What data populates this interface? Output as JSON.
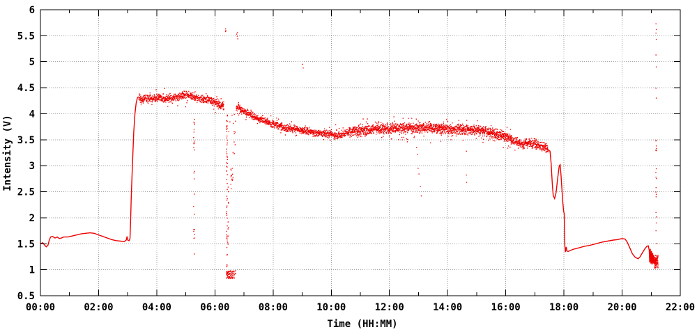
{
  "chart_data": {
    "type": "scatter",
    "title": "",
    "xlabel": "Time (HH:MM)",
    "ylabel": "Intensity (V)",
    "grid": true,
    "legend": "none",
    "series_color": "#ee0000",
    "grid_color": "#a0a0a0",
    "axis_color": "#000000",
    "x_range_hours": [
      0,
      22
    ],
    "ylim": [
      0.5,
      6
    ],
    "x_ticks": [
      {
        "h": 0,
        "label": "00:00"
      },
      {
        "h": 2,
        "label": "02:00"
      },
      {
        "h": 4,
        "label": "04:00"
      },
      {
        "h": 6,
        "label": "06:00"
      },
      {
        "h": 8,
        "label": "08:00"
      },
      {
        "h": 10,
        "label": "10:00"
      },
      {
        "h": 12,
        "label": "12:00"
      },
      {
        "h": 14,
        "label": "14:00"
      },
      {
        "h": 16,
        "label": "16:00"
      },
      {
        "h": 18,
        "label": "18:00"
      },
      {
        "h": 20,
        "label": "20:00"
      },
      {
        "h": 22,
        "label": "22:00"
      }
    ],
    "minor_x_step_hours": 1,
    "y_ticks": [
      {
        "v": 0.5,
        "label": "0.5"
      },
      {
        "v": 1,
        "label": "1"
      },
      {
        "v": 1.5,
        "label": "1.5"
      },
      {
        "v": 2,
        "label": "2"
      },
      {
        "v": 2.5,
        "label": "2.5"
      },
      {
        "v": 3,
        "label": "3"
      },
      {
        "v": 3.5,
        "label": "3.5"
      },
      {
        "v": 4,
        "label": "4"
      },
      {
        "v": 4.5,
        "label": "4.5"
      },
      {
        "v": 5,
        "label": "5"
      },
      {
        "v": 5.5,
        "label": "5.5"
      },
      {
        "v": 6,
        "label": "6"
      }
    ],
    "segments": [
      {
        "name": "early-morning-line",
        "style": "line",
        "points": [
          [
            0,
            1.5
          ],
          [
            0.08,
            1.52
          ],
          [
            0.15,
            1.47
          ],
          [
            0.2,
            1.44
          ],
          [
            0.26,
            1.47
          ],
          [
            0.3,
            1.56
          ],
          [
            0.35,
            1.63
          ],
          [
            0.42,
            1.64
          ],
          [
            0.5,
            1.61
          ],
          [
            0.58,
            1.63
          ],
          [
            0.65,
            1.6
          ],
          [
            0.72,
            1.61
          ],
          [
            0.8,
            1.63
          ],
          [
            0.95,
            1.63
          ],
          [
            1.1,
            1.65
          ],
          [
            1.25,
            1.67
          ],
          [
            1.4,
            1.69
          ],
          [
            1.55,
            1.7
          ],
          [
            1.7,
            1.71
          ],
          [
            1.85,
            1.7
          ],
          [
            2.0,
            1.67
          ],
          [
            2.15,
            1.64
          ],
          [
            2.3,
            1.61
          ],
          [
            2.45,
            1.58
          ],
          [
            2.6,
            1.56
          ],
          [
            2.75,
            1.55
          ],
          [
            2.88,
            1.54
          ],
          [
            2.95,
            1.57
          ],
          [
            2.98,
            1.64
          ],
          [
            3.0,
            1.57
          ],
          [
            3.05,
            1.56
          ],
          [
            3.08,
            1.6
          ]
        ]
      },
      {
        "name": "morning-rise",
        "style": "line",
        "points": [
          [
            3.08,
            1.6
          ],
          [
            3.1,
            1.95
          ],
          [
            3.12,
            2.35
          ],
          [
            3.15,
            2.8
          ],
          [
            3.18,
            3.25
          ],
          [
            3.21,
            3.65
          ],
          [
            3.25,
            4.0
          ],
          [
            3.29,
            4.2
          ],
          [
            3.33,
            4.3
          ],
          [
            3.37,
            4.33
          ]
        ]
      },
      {
        "name": "plateau",
        "style": "dots",
        "amp": 0.045,
        "density": 3,
        "points": [
          [
            3.37,
            4.31
          ],
          [
            3.47,
            4.25
          ],
          [
            3.57,
            4.3
          ],
          [
            3.75,
            4.29
          ],
          [
            3.95,
            4.31
          ],
          [
            4.15,
            4.3
          ],
          [
            4.35,
            4.28
          ],
          [
            4.55,
            4.3
          ],
          [
            4.75,
            4.33
          ],
          [
            4.95,
            4.36
          ],
          [
            5.1,
            4.35
          ],
          [
            5.25,
            4.32
          ],
          [
            5.4,
            4.3
          ],
          [
            5.55,
            4.29
          ],
          [
            5.7,
            4.28
          ],
          [
            5.85,
            4.25
          ],
          [
            6.0,
            4.21
          ],
          [
            6.1,
            4.17
          ],
          [
            6.2,
            4.15
          ],
          [
            6.3,
            4.13
          ]
        ]
      },
      {
        "name": "plateau-fringe",
        "style": "dots",
        "amp": 0.1,
        "density": 0.35,
        "points": [
          [
            3.4,
            4.3
          ],
          [
            4.0,
            4.31
          ],
          [
            4.6,
            4.3
          ],
          [
            5.2,
            4.33
          ],
          [
            5.8,
            4.26
          ],
          [
            6.3,
            4.14
          ]
        ]
      },
      {
        "name": "midday-decline",
        "style": "dots",
        "amp": 0.04,
        "density": 3,
        "points": [
          [
            6.72,
            4.1
          ],
          [
            6.8,
            4.14
          ],
          [
            6.88,
            4.07
          ],
          [
            7.0,
            4.05
          ],
          [
            7.15,
            4.0
          ],
          [
            7.3,
            3.95
          ],
          [
            7.5,
            3.9
          ],
          [
            7.7,
            3.86
          ],
          [
            7.9,
            3.82
          ],
          [
            8.1,
            3.78
          ],
          [
            8.3,
            3.74
          ],
          [
            8.5,
            3.72
          ],
          [
            8.7,
            3.71
          ],
          [
            8.9,
            3.69
          ],
          [
            9.1,
            3.67
          ],
          [
            9.3,
            3.64
          ],
          [
            9.5,
            3.63
          ],
          [
            9.7,
            3.63
          ],
          [
            9.9,
            3.61
          ],
          [
            10.05,
            3.59
          ],
          [
            10.15,
            3.56
          ],
          [
            10.28,
            3.59
          ],
          [
            10.45,
            3.62
          ],
          [
            10.6,
            3.64
          ]
        ]
      },
      {
        "name": "decline-fringe",
        "style": "dots",
        "amp": 0.08,
        "density": 0.3,
        "points": [
          [
            6.75,
            4.1
          ],
          [
            7.5,
            3.9
          ],
          [
            8.5,
            3.72
          ],
          [
            9.5,
            3.63
          ],
          [
            10.6,
            3.64
          ]
        ]
      },
      {
        "name": "afternoon-band",
        "style": "dots",
        "amp": 0.055,
        "density": 3.5,
        "points": [
          [
            10.6,
            3.64
          ],
          [
            10.9,
            3.66
          ],
          [
            11.2,
            3.68
          ],
          [
            11.5,
            3.7
          ],
          [
            11.8,
            3.71
          ],
          [
            12.1,
            3.71
          ],
          [
            12.4,
            3.72
          ],
          [
            12.7,
            3.73
          ],
          [
            13.0,
            3.73
          ],
          [
            13.3,
            3.73
          ],
          [
            13.6,
            3.72
          ],
          [
            13.9,
            3.71
          ],
          [
            14.2,
            3.71
          ],
          [
            14.5,
            3.7
          ],
          [
            14.8,
            3.69
          ],
          [
            15.1,
            3.67
          ],
          [
            15.4,
            3.64
          ],
          [
            15.7,
            3.61
          ],
          [
            15.9,
            3.58
          ],
          [
            16.1,
            3.54
          ],
          [
            16.25,
            3.49
          ],
          [
            16.4,
            3.44
          ],
          [
            16.55,
            3.42
          ],
          [
            16.7,
            3.44
          ],
          [
            16.85,
            3.44
          ],
          [
            17.0,
            3.42
          ],
          [
            17.15,
            3.39
          ],
          [
            17.3,
            3.35
          ],
          [
            17.45,
            3.31
          ]
        ]
      },
      {
        "name": "band-fringe",
        "style": "dots",
        "amp": 0.12,
        "density": 0.6,
        "points": [
          [
            10.9,
            3.66
          ],
          [
            11.5,
            3.7
          ],
          [
            12.1,
            3.71
          ],
          [
            12.7,
            3.73
          ],
          [
            13.3,
            3.73
          ],
          [
            13.9,
            3.71
          ],
          [
            14.5,
            3.7
          ],
          [
            15.1,
            3.67
          ],
          [
            15.7,
            3.61
          ],
          [
            16.2,
            3.5
          ]
        ]
      },
      {
        "name": "evening-crash",
        "style": "line",
        "points": [
          [
            17.45,
            3.31
          ],
          [
            17.52,
            3.28
          ],
          [
            17.56,
            3.05
          ],
          [
            17.6,
            2.65
          ],
          [
            17.63,
            2.43
          ],
          [
            17.68,
            2.37
          ],
          [
            17.73,
            2.48
          ],
          [
            17.79,
            2.78
          ],
          [
            17.84,
            3.0
          ],
          [
            17.87,
            3.02
          ],
          [
            17.9,
            2.82
          ],
          [
            17.93,
            2.55
          ],
          [
            17.96,
            2.3
          ],
          [
            17.99,
            2.12
          ],
          [
            18.01,
            2.08
          ],
          [
            18.03,
            1.48
          ],
          [
            18.05,
            1.34
          ],
          [
            18.08,
            1.44
          ],
          [
            18.1,
            1.36
          ],
          [
            18.14,
            1.35
          ]
        ]
      },
      {
        "name": "night-line",
        "style": "line",
        "points": [
          [
            18.14,
            1.35
          ],
          [
            18.3,
            1.39
          ],
          [
            18.5,
            1.42
          ],
          [
            18.7,
            1.45
          ],
          [
            18.9,
            1.47
          ],
          [
            19.1,
            1.5
          ],
          [
            19.3,
            1.53
          ],
          [
            19.5,
            1.55
          ],
          [
            19.7,
            1.57
          ],
          [
            19.85,
            1.58
          ],
          [
            20.0,
            1.6
          ],
          [
            20.1,
            1.59
          ],
          [
            20.17,
            1.54
          ],
          [
            20.25,
            1.44
          ],
          [
            20.35,
            1.31
          ],
          [
            20.45,
            1.24
          ],
          [
            20.55,
            1.21
          ],
          [
            20.62,
            1.25
          ],
          [
            20.7,
            1.33
          ],
          [
            20.78,
            1.4
          ],
          [
            20.85,
            1.45
          ],
          [
            20.9,
            1.46
          ],
          [
            20.93,
            1.38
          ]
        ]
      },
      {
        "name": "end-oscillation",
        "style": "line",
        "points": [
          [
            20.93,
            1.38
          ],
          [
            20.95,
            1.14
          ],
          [
            20.97,
            1.4
          ],
          [
            20.99,
            1.12
          ],
          [
            21.01,
            1.36
          ],
          [
            21.03,
            1.1
          ],
          [
            21.05,
            1.32
          ],
          [
            21.07,
            1.12
          ],
          [
            21.09,
            1.28
          ],
          [
            21.11,
            1.1
          ],
          [
            21.14,
            1.22
          ],
          [
            21.17,
            1.08
          ],
          [
            21.2,
            1.12
          ]
        ]
      }
    ],
    "dropout_columns": [
      {
        "name": "dropout-0516",
        "t": 5.27,
        "vmin": 1.3,
        "vmax": 4.24,
        "n": 26
      },
      {
        "name": "dropout-0624-line",
        "t": 6.4,
        "vmin": 0.9,
        "vmax": 4.12,
        "n": 60
      },
      {
        "name": "dropout-0624-line2",
        "t": 6.44,
        "vmin": 1.0,
        "vmax": 2.6,
        "n": 10
      },
      {
        "name": "dropout-bottom-cluster",
        "t": 6.38,
        "t2": 6.7,
        "vmin": 0.83,
        "vmax": 0.98,
        "n": 80
      },
      {
        "name": "dropout-mid-cluster",
        "t": 6.53,
        "t2": 6.66,
        "vmin": 2.55,
        "vmax": 3.0,
        "n": 14
      },
      {
        "name": "dropout-upper-scatter",
        "t": 6.45,
        "t2": 6.7,
        "vmin": 3.2,
        "vmax": 4.0,
        "n": 14
      },
      {
        "name": "end-column",
        "t": 21.14,
        "t2": 21.18,
        "vmin": 1.35,
        "vmax": 3.55,
        "n": 12
      },
      {
        "name": "end-cluster",
        "t": 21.1,
        "t2": 21.22,
        "vmin": 1.02,
        "vmax": 1.28,
        "n": 70
      }
    ],
    "scatter_points": [
      [
        6.35,
        5.63
      ],
      [
        6.35,
        5.58
      ],
      [
        6.36,
        5.6
      ],
      [
        6.73,
        5.53
      ],
      [
        6.75,
        5.49
      ],
      [
        6.76,
        5.56
      ],
      [
        6.77,
        5.44
      ],
      [
        9.0,
        4.95
      ],
      [
        9.02,
        4.88
      ],
      [
        12.3,
        3.5
      ],
      [
        12.6,
        3.46
      ],
      [
        12.92,
        3.35
      ],
      [
        12.95,
        3.22
      ],
      [
        12.97,
        2.95
      ],
      [
        13.0,
        2.84
      ],
      [
        13.05,
        2.6
      ],
      [
        13.08,
        2.42
      ],
      [
        13.4,
        3.44
      ],
      [
        13.75,
        3.47
      ],
      [
        14.1,
        3.5
      ],
      [
        14.63,
        3.28
      ],
      [
        14.63,
        2.82
      ],
      [
        14.64,
        2.68
      ],
      [
        15.2,
        3.45
      ],
      [
        15.9,
        3.35
      ],
      [
        16.3,
        3.3
      ],
      [
        21.15,
        5.73
      ],
      [
        21.16,
        5.62
      ],
      [
        21.15,
        5.55
      ],
      [
        21.16,
        5.43
      ],
      [
        21.15,
        5.13
      ],
      [
        21.16,
        4.9
      ],
      [
        21.15,
        4.49
      ],
      [
        21.16,
        4.3
      ],
      [
        21.15,
        3.49
      ],
      [
        21.16,
        3.38
      ],
      [
        21.15,
        2.78
      ],
      [
        21.16,
        2.45
      ],
      [
        21.15,
        2.1
      ],
      [
        21.16,
        1.9
      ],
      [
        21.15,
        1.75
      ]
    ]
  }
}
